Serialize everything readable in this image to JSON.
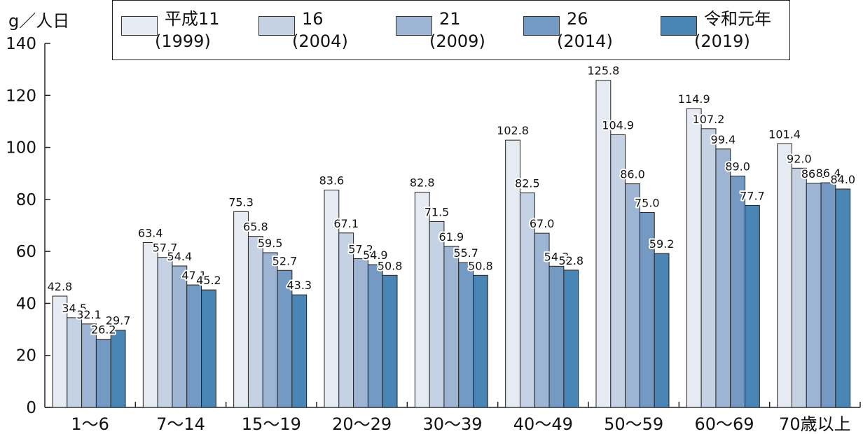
{
  "chart_data": {
    "type": "bar",
    "ylabel": "g／人日",
    "ylim": [
      0,
      140
    ],
    "yticks": [
      0,
      20,
      40,
      60,
      80,
      100,
      120,
      140
    ],
    "categories": [
      "1～6",
      "7～14",
      "15～19",
      "20～29",
      "30～39",
      "40～49",
      "50～59",
      "60～69",
      "70歳以上"
    ],
    "series": [
      {
        "name": "平成11",
        "sub": "(1999)",
        "color": "#e6ebf3",
        "values": [
          42.8,
          63.4,
          75.3,
          83.6,
          82.8,
          102.8,
          125.8,
          114.9,
          101.4
        ]
      },
      {
        "name": "16",
        "sub": "(2004)",
        "color": "#c5d2e3",
        "values": [
          34.5,
          57.7,
          65.8,
          67.1,
          71.5,
          82.5,
          104.9,
          107.2,
          92.0
        ]
      },
      {
        "name": "21",
        "sub": "(2009)",
        "color": "#9db4d2",
        "values": [
          32.1,
          54.4,
          59.5,
          57.2,
          61.9,
          67.0,
          86.0,
          99.4,
          86.2
        ]
      },
      {
        "name": "26",
        "sub": "(2014)",
        "color": "#7499c2",
        "values": [
          26.2,
          47.1,
          52.7,
          54.9,
          55.7,
          54.3,
          75.0,
          89.0,
          86.4
        ]
      },
      {
        "name": "令和元年",
        "sub": "(2019)",
        "color": "#4a86b5",
        "values": [
          29.7,
          45.2,
          43.3,
          50.8,
          50.8,
          52.8,
          59.2,
          77.7,
          84.0
        ]
      }
    ],
    "data_labels": [
      [
        "42.8",
        "34.5",
        "32.1",
        "26.2",
        "29.7"
      ],
      [
        "63.4",
        "57.7",
        "54.4",
        "47.1",
        "45.2"
      ],
      [
        "75.3",
        "65.8",
        "59.5",
        "52.7",
        "43.3"
      ],
      [
        "83.6",
        "67.1",
        "57.2",
        "54.9",
        "50.8"
      ],
      [
        "82.8",
        "71.5",
        "61.9",
        "55.7",
        "50.8"
      ],
      [
        "102.8",
        "82.5",
        "67.0",
        "54.3",
        "52.8"
      ],
      [
        "125.8",
        "104.9",
        "86.0",
        "75.0",
        "59.2"
      ],
      [
        "114.9",
        "107.2",
        "99.4",
        "89.0",
        "77.7"
      ],
      [
        "101.4",
        "92.0",
        "86.2",
        "86.4",
        "84.0"
      ]
    ],
    "grid": false,
    "legend_position": "top"
  }
}
